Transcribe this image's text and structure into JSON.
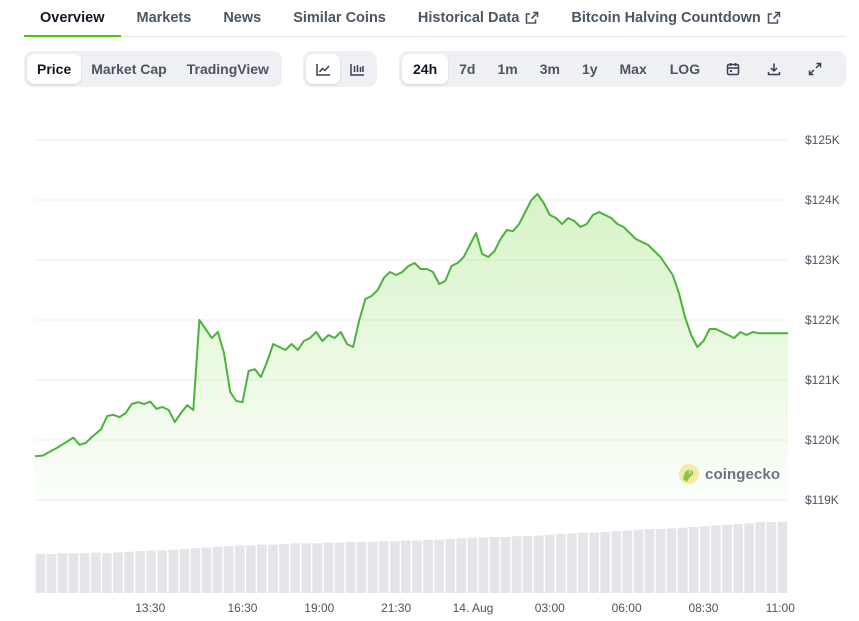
{
  "top_tabs": [
    {
      "label": "Overview",
      "active": true,
      "external": false
    },
    {
      "label": "Markets",
      "active": false,
      "external": false
    },
    {
      "label": "News",
      "active": false,
      "external": false
    },
    {
      "label": "Similar Coins",
      "active": false,
      "external": false
    },
    {
      "label": "Historical Data",
      "active": false,
      "external": true
    },
    {
      "label": "Bitcoin Halving Countdown",
      "active": false,
      "external": true
    }
  ],
  "toolbar": {
    "metric_tabs": [
      {
        "label": "Price",
        "active": true
      },
      {
        "label": "Market Cap",
        "active": false
      },
      {
        "label": "TradingView",
        "active": false
      }
    ],
    "chart_style_icons": [
      {
        "icon": "line-chart-icon",
        "active": true
      },
      {
        "icon": "candlestick-chart-icon",
        "active": false
      }
    ],
    "ranges": [
      {
        "label": "24h",
        "active": true
      },
      {
        "label": "7d",
        "active": false
      },
      {
        "label": "1m",
        "active": false
      },
      {
        "label": "3m",
        "active": false
      },
      {
        "label": "1y",
        "active": false
      },
      {
        "label": "Max",
        "active": false
      },
      {
        "label": "LOG",
        "active": false
      }
    ],
    "action_icons": [
      "calendar-icon",
      "download-icon",
      "fullscreen-icon"
    ]
  },
  "watermark": {
    "text": "coingecko"
  },
  "colors": {
    "line": "#4bb33a",
    "area_top": "#4bcc00",
    "active_tab_underline": "#4bcc00",
    "volume": "#e3e5e8",
    "gridline": "#eceef1",
    "axis_text": "#4b5563"
  },
  "chart_data": {
    "type": "area",
    "title": "",
    "xlabel": "",
    "ylabel": "",
    "y_tick_labels": [
      "$125K",
      "$124K",
      "$123K",
      "$122K",
      "$121K",
      "$120K",
      "$119K"
    ],
    "y_ticks": [
      125000,
      124000,
      123000,
      122000,
      121000,
      120000,
      119000
    ],
    "ylim": [
      119000,
      125000
    ],
    "x_tick_labels": [
      "13:30",
      "16:30",
      "19:00",
      "21:30",
      "14. Aug",
      "03:00",
      "06:00",
      "08:30",
      "11:00"
    ],
    "x_ticks": [
      2.0,
      5.0,
      7.5,
      10.0,
      12.5,
      15.0,
      17.5,
      20.0,
      22.5
    ],
    "xlim": [
      -1.75,
      22.75
    ],
    "x_unit": "hours since 00:00 (14 Aug)",
    "grid": true,
    "legend": "none",
    "price_series": {
      "name": "Price",
      "x": [
        -1.75,
        -1.5,
        -1.0,
        -0.5,
        -0.3,
        -0.1,
        0.1,
        0.4,
        0.6,
        0.8,
        1.0,
        1.2,
        1.4,
        1.6,
        1.8,
        2.0,
        2.2,
        2.4,
        2.6,
        2.8,
        3.0,
        3.2,
        3.4,
        3.6,
        3.8,
        4.0,
        4.2,
        4.4,
        4.6,
        4.8,
        5.0,
        5.2,
        5.4,
        5.6,
        5.8,
        6.0,
        6.2,
        6.4,
        6.6,
        6.8,
        7.0,
        7.2,
        7.4,
        7.6,
        7.8,
        8.0,
        8.2,
        8.4,
        8.6,
        8.8,
        9.0,
        9.2,
        9.4,
        9.6,
        9.8,
        10.0,
        10.2,
        10.4,
        10.6,
        10.8,
        11.0,
        11.2,
        11.4,
        11.6,
        11.8,
        12.0,
        12.2,
        12.4,
        12.6,
        12.8,
        13.0,
        13.2,
        13.4,
        13.6,
        13.8,
        14.0,
        14.2,
        14.4,
        14.6,
        14.8,
        15.0,
        15.2,
        15.4,
        15.6,
        15.8,
        16.0,
        16.2,
        16.4,
        16.6,
        16.8,
        17.0,
        17.2,
        17.4,
        17.6,
        17.8,
        18.0,
        18.2,
        18.4,
        18.6,
        18.8,
        19.0,
        19.2,
        19.4,
        19.6,
        19.8,
        20.0,
        20.2,
        20.4,
        20.6,
        20.8,
        21.0,
        21.2,
        21.4,
        21.6,
        21.8,
        22.0,
        22.2,
        22.4,
        22.75
      ],
      "values": [
        119730,
        119740,
        119880,
        120040,
        119920,
        119950,
        120050,
        120180,
        120400,
        120420,
        120380,
        120450,
        120600,
        120630,
        120600,
        120640,
        120520,
        120550,
        120500,
        120300,
        120450,
        120580,
        120500,
        122000,
        121850,
        121700,
        121800,
        121450,
        120800,
        120650,
        120630,
        121150,
        121180,
        121050,
        121300,
        121600,
        121550,
        121500,
        121600,
        121500,
        121650,
        121700,
        121800,
        121650,
        121750,
        121700,
        121800,
        121600,
        121550,
        122000,
        122350,
        122400,
        122500,
        122700,
        122800,
        122750,
        122800,
        122900,
        122950,
        122850,
        122850,
        122800,
        122600,
        122650,
        122900,
        122950,
        123050,
        123250,
        123450,
        123100,
        123050,
        123150,
        123350,
        123500,
        123480,
        123600,
        123800,
        124000,
        124100,
        123950,
        123750,
        123700,
        123600,
        123700,
        123650,
        123550,
        123600,
        123750,
        123800,
        123750,
        123700,
        123600,
        123550,
        123450,
        123350,
        123300,
        123250,
        123150,
        123050,
        122900,
        122750,
        122450,
        122050,
        121750,
        121550,
        121650,
        121850,
        121850,
        121800,
        121750,
        121700,
        121800,
        121750,
        121800,
        121780,
        121780,
        121780,
        121780,
        121780
      ],
      "color": "#4bb33a"
    },
    "volume_series": {
      "name": "Volume",
      "values": [
        0.55,
        0.55,
        0.56,
        0.56,
        0.56,
        0.57,
        0.56,
        0.57,
        0.58,
        0.59,
        0.6,
        0.6,
        0.61,
        0.62,
        0.63,
        0.64,
        0.65,
        0.66,
        0.67,
        0.67,
        0.68,
        0.68,
        0.69,
        0.7,
        0.7,
        0.7,
        0.71,
        0.71,
        0.72,
        0.72,
        0.72,
        0.73,
        0.73,
        0.74,
        0.74,
        0.75,
        0.75,
        0.76,
        0.77,
        0.78,
        0.78,
        0.79,
        0.79,
        0.8,
        0.8,
        0.81,
        0.82,
        0.83,
        0.84,
        0.85,
        0.85,
        0.86,
        0.87,
        0.88,
        0.89,
        0.9,
        0.9,
        0.91,
        0.92,
        0.93,
        0.94,
        0.95,
        0.96,
        0.97,
        0.98,
        1.0,
        1.0,
        1.0
      ],
      "color": "#e3e5e8"
    }
  }
}
